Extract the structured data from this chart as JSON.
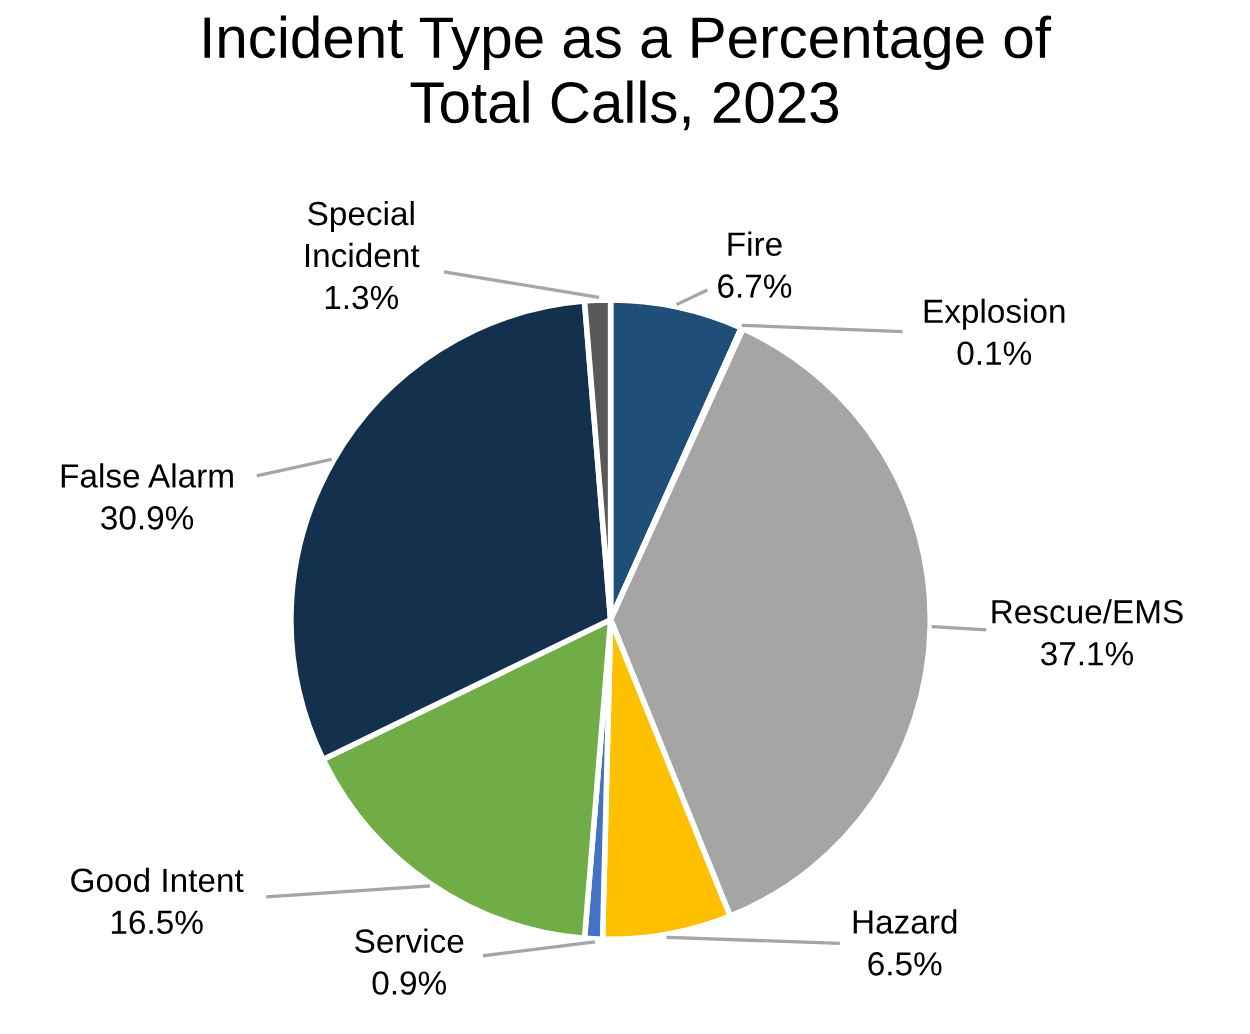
{
  "chart_data": {
    "type": "pie",
    "title": "Incident Type as a Percentage of\nTotal Calls, 2023",
    "categories": [
      "Fire",
      "Explosion",
      "Rescue/EMS",
      "Hazard",
      "Service",
      "Good Intent",
      "False Alarm",
      "Special\nIncident"
    ],
    "values": [
      6.7,
      0.1,
      37.1,
      6.5,
      0.9,
      16.5,
      30.9,
      1.3
    ],
    "value_labels": [
      "6.7%",
      "0.1%",
      "37.1%",
      "6.5%",
      "0.9%",
      "16.5%",
      "30.9%",
      "1.3%"
    ],
    "colors": [
      "#1f4e79",
      "#ed7d31",
      "#a5a5a5",
      "#ffc000",
      "#4472c4",
      "#70ad47",
      "#13304d",
      "#595959"
    ],
    "legend": false
  }
}
